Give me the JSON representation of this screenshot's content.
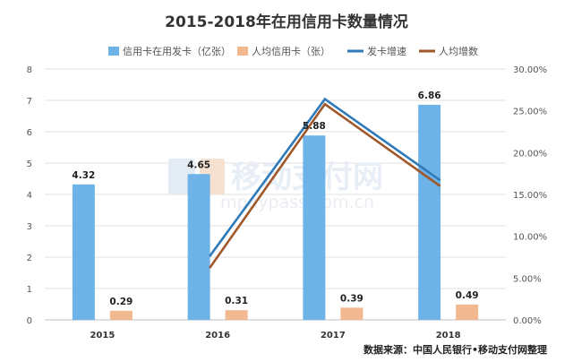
{
  "chart_data": {
    "type": "bar",
    "title": "2015-2018年在用信用卡数量情况",
    "categories": [
      "2015",
      "2016",
      "2017",
      "2018"
    ],
    "series": [
      {
        "name": "信用卡在用发卡（亿张）",
        "kind": "bar",
        "axis": "left",
        "color": "#6db3e8",
        "values": [
          4.32,
          4.65,
          5.88,
          6.86
        ]
      },
      {
        "name": "人均信用卡（张）",
        "kind": "bar",
        "axis": "left",
        "color": "#f2b991",
        "values": [
          0.29,
          0.31,
          0.39,
          0.49
        ]
      },
      {
        "name": "发卡增速",
        "kind": "line",
        "axis": "right",
        "color": "#2f7ab8",
        "values": [
          null,
          0.076,
          0.264,
          0.167
        ]
      },
      {
        "name": "人均增数",
        "kind": "line",
        "axis": "right",
        "color": "#a0572a",
        "values": [
          null,
          0.062,
          0.258,
          0.16
        ]
      }
    ],
    "y_left": {
      "min": 0,
      "max": 8,
      "ticks": [
        "0",
        "1",
        "2",
        "3",
        "4",
        "5",
        "6",
        "7",
        "8"
      ]
    },
    "y_right": {
      "min": 0,
      "max": 0.3,
      "ticks": [
        "0.00%",
        "5.00%",
        "10.00%",
        "15.00%",
        "20.00%",
        "25.00%",
        "30.00%"
      ]
    },
    "grid": true,
    "legend": "top",
    "source_note": "数据来源：中国人民银行•移动支付网整理",
    "watermark": {
      "text": "移动支付网",
      "sub": "mpaypass.com.cn"
    }
  }
}
